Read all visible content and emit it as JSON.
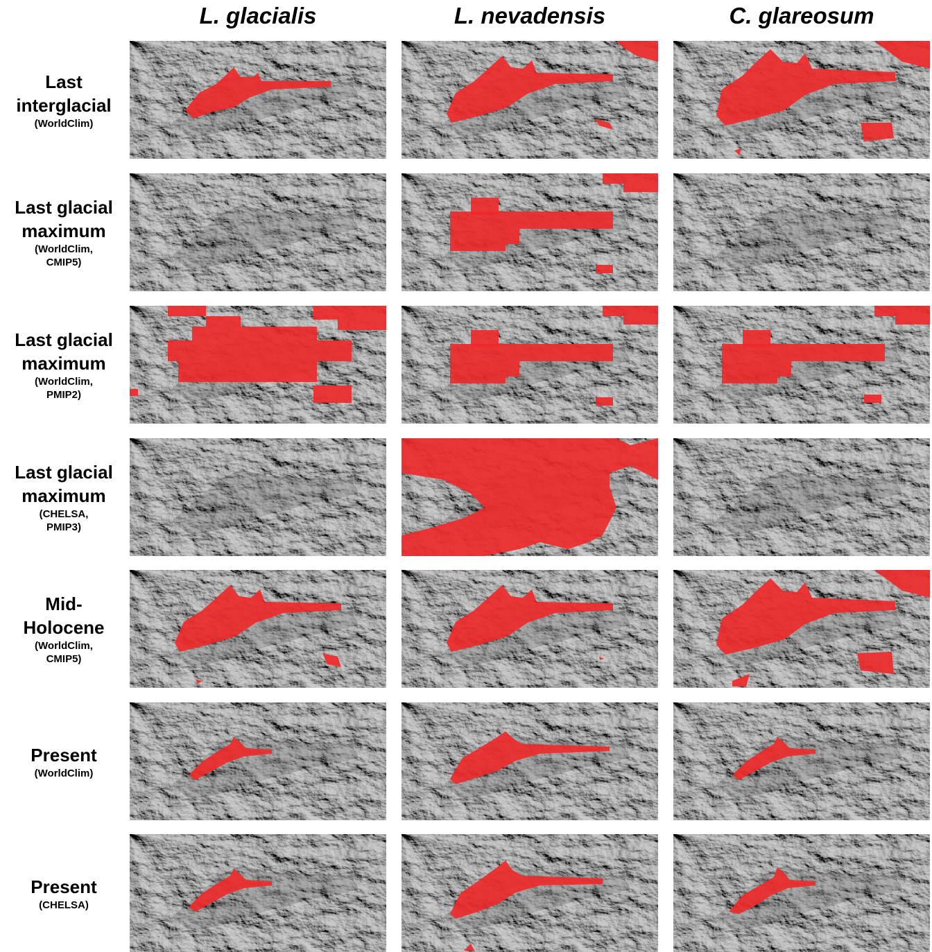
{
  "column_titles": [
    "L. glacialis",
    "L. nevadensis",
    "C. glareosum"
  ],
  "rows": [
    {
      "label": "Last interglacial",
      "source": "(WorldClim)"
    },
    {
      "label": "Last glacial maximum",
      "source": "(WorldClim, CMIP5)"
    },
    {
      "label": "Last glacial maximum",
      "source": "(WorldClim, PMIP2)"
    },
    {
      "label": "Last glacial maximum",
      "source": "(CHELSA, PMIP3)"
    },
    {
      "label": "Mid-Holocene",
      "source": "(WorldClim, CMIP5)"
    },
    {
      "label": "Present",
      "source": "(WorldClim)"
    },
    {
      "label": "Present",
      "source": "(CHELSA)"
    }
  ]
}
